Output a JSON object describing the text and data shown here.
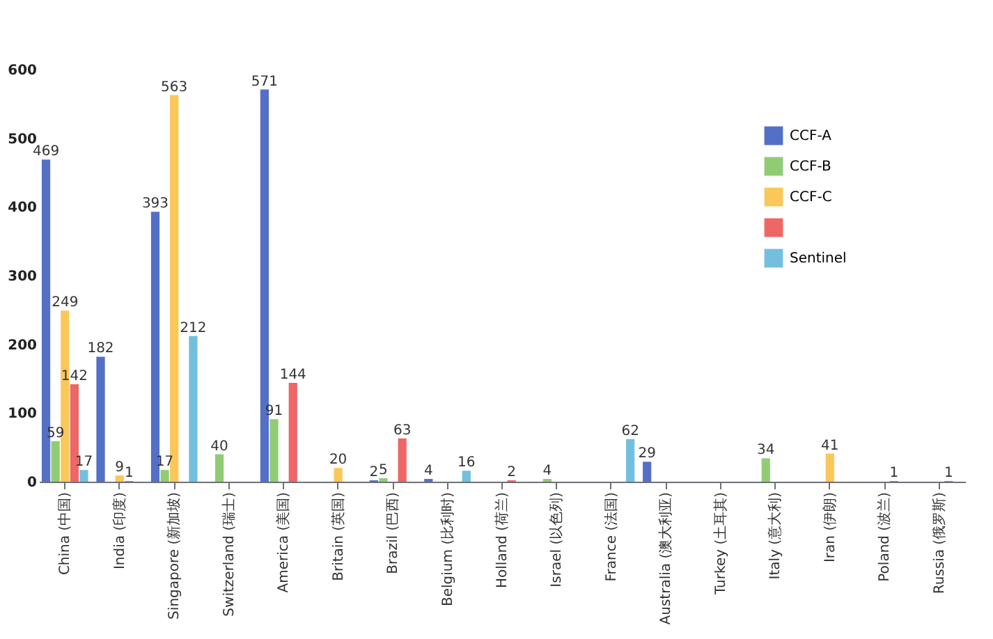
{
  "chart_data": {
    "type": "bar",
    "categories": [
      "China (中国)",
      "India (印度)",
      "Singapore (新加坡)",
      "Switzerland (瑞士)",
      "America (美国)",
      "Britain (英国)",
      "Brazil (巴西)",
      "Belgium (比利时)",
      "Holland (荷兰)",
      "Israel (以色列)",
      "France (法国)",
      "Australia (澳大利亚)",
      "Turkey (土耳其)",
      "Italy (意大利)",
      "Iran (伊朗)",
      "Poland (波兰)",
      "Russia (俄罗斯)"
    ],
    "series": [
      {
        "name": "CCF-A",
        "color": "#5470c6",
        "values": [
          469,
          182,
          393,
          null,
          571,
          null,
          2,
          4,
          null,
          null,
          null,
          29,
          null,
          null,
          null,
          null,
          null
        ]
      },
      {
        "name": "CCF-B",
        "color": "#91cc75",
        "values": [
          59,
          null,
          17,
          40,
          91,
          null,
          5,
          null,
          null,
          4,
          null,
          null,
          null,
          34,
          null,
          null,
          null
        ]
      },
      {
        "name": "CCF-C",
        "color": "#fac858",
        "values": [
          249,
          9,
          563,
          null,
          null,
          20,
          null,
          null,
          null,
          null,
          null,
          null,
          null,
          null,
          41,
          null,
          null
        ]
      },
      {
        "color": "#ee6666",
        "values": [
          142,
          1,
          null,
          null,
          144,
          null,
          63,
          null,
          2,
          null,
          null,
          null,
          null,
          null,
          null,
          1,
          1
        ]
      },
      {
        "name": "Sentinel",
        "color": "#73c0de",
        "values": [
          17,
          null,
          212,
          null,
          null,
          null,
          null,
          16,
          null,
          null,
          62,
          null,
          null,
          null,
          null,
          null,
          null
        ]
      }
    ],
    "ylim": [
      0,
      600
    ],
    "yticks": [
      0,
      100,
      200,
      300,
      400,
      500,
      600
    ],
    "data_labels": true,
    "grid": false,
    "legend": "top right"
  }
}
